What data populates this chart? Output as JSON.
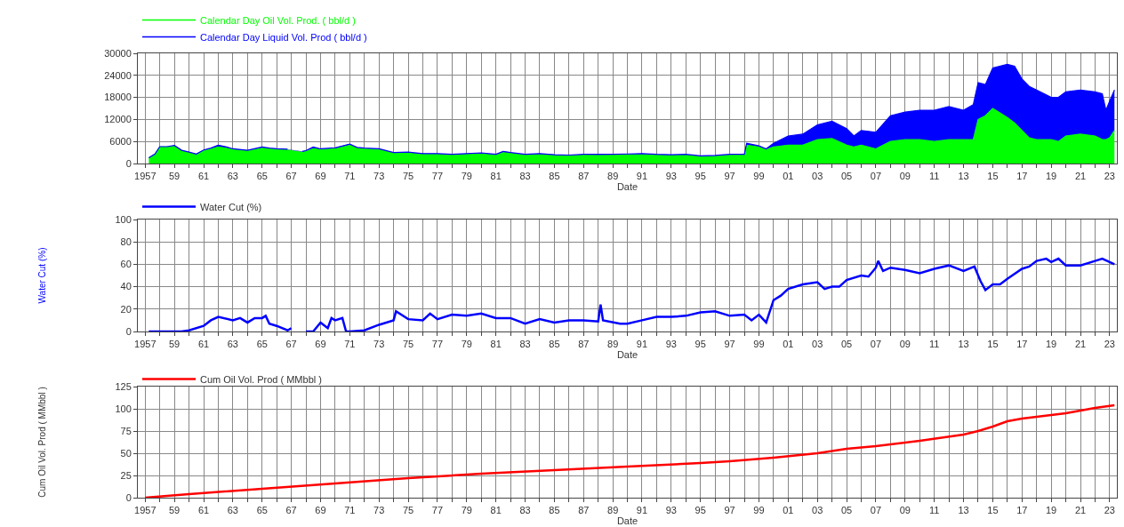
{
  "chart_data": [
    {
      "type": "area",
      "xlabel": "Date",
      "xlim": [
        "1956-07",
        "2023-07"
      ],
      "ylim": [
        0,
        30000
      ],
      "yticks": [
        0,
        6000,
        12000,
        18000,
        24000,
        30000
      ],
      "grid": true,
      "legend": "top left",
      "marker": "none",
      "xticks": [
        {
          "value": "1957",
          "label": "1957"
        },
        {
          "value": "1958",
          "label": null
        },
        {
          "value": "1959",
          "label": "59"
        },
        {
          "value": "1960",
          "label": null
        },
        {
          "value": "1961",
          "label": "61"
        },
        {
          "value": "1962",
          "label": null
        },
        {
          "value": "1963",
          "label": "63"
        },
        {
          "value": "1964",
          "label": null
        },
        {
          "value": "1965",
          "label": "65"
        },
        {
          "value": "1966",
          "label": null
        },
        {
          "value": "1967",
          "label": "67"
        },
        {
          "value": "1968",
          "label": null
        },
        {
          "value": "1969",
          "label": "69"
        },
        {
          "value": "1970",
          "label": null
        },
        {
          "value": "1971",
          "label": "71"
        },
        {
          "value": "1972",
          "label": null
        },
        {
          "value": "1973",
          "label": "73"
        },
        {
          "value": "1974",
          "label": null
        },
        {
          "value": "1975",
          "label": "75"
        },
        {
          "value": "1976",
          "label": null
        },
        {
          "value": "1977",
          "label": "77"
        },
        {
          "value": "1978",
          "label": null
        },
        {
          "value": "1979",
          "label": "79"
        },
        {
          "value": "1980",
          "label": null
        },
        {
          "value": "1981",
          "label": "81"
        },
        {
          "value": "1982",
          "label": null
        },
        {
          "value": "1983",
          "label": "83"
        },
        {
          "value": "1984",
          "label": null
        },
        {
          "value": "1985",
          "label": "85"
        },
        {
          "value": "1986",
          "label": null
        },
        {
          "value": "1987",
          "label": "87"
        },
        {
          "value": "1988",
          "label": null
        },
        {
          "value": "1989",
          "label": "89"
        },
        {
          "value": "1990",
          "label": null
        },
        {
          "value": "1991",
          "label": "91"
        },
        {
          "value": "1992",
          "label": null
        },
        {
          "value": "1993",
          "label": "93"
        },
        {
          "value": "1994",
          "label": null
        },
        {
          "value": "1995",
          "label": "95"
        },
        {
          "value": "1996",
          "label": null
        },
        {
          "value": "1997",
          "label": "97"
        },
        {
          "value": "1998",
          "label": null
        },
        {
          "value": "1999",
          "label": "99"
        },
        {
          "value": "2000",
          "label": null
        },
        {
          "value": "2001",
          "label": "01"
        },
        {
          "value": "2002",
          "label": null
        },
        {
          "value": "2003",
          "label": "03"
        },
        {
          "value": "2004",
          "label": null
        },
        {
          "value": "2005",
          "label": "05"
        },
        {
          "value": "2006",
          "label": null
        },
        {
          "value": "2007",
          "label": "07"
        },
        {
          "value": "2008",
          "label": null
        },
        {
          "value": "2009",
          "label": "09"
        },
        {
          "value": "2010",
          "label": null
        },
        {
          "value": "2011",
          "label": "11"
        },
        {
          "value": "2012",
          "label": null
        },
        {
          "value": "2013",
          "label": "13"
        },
        {
          "value": "2014",
          "label": null
        },
        {
          "value": "2015",
          "label": "15"
        },
        {
          "value": "2016",
          "label": null
        },
        {
          "value": "2017",
          "label": "17"
        },
        {
          "value": "2018",
          "label": null
        },
        {
          "value": "2019",
          "label": "19"
        },
        {
          "value": "2020",
          "label": null
        },
        {
          "value": "2021",
          "label": "21"
        },
        {
          "value": "2022",
          "label": null
        },
        {
          "value": "2023",
          "label": "23"
        }
      ],
      "x": [
        "1957-04",
        "1957-09",
        "1958-01",
        "1958-07",
        "1959-01",
        "1959-07",
        "1960-01",
        "1960-07",
        "1961-01",
        "1961-07",
        "1962-01",
        "1962-07",
        "1963-01",
        "1964-01",
        "1965-01",
        "1965-07",
        "1966-01",
        "1966-10",
        "1967-06",
        "1967-10",
        "1968-01",
        "1968-07",
        "1969-01",
        "1970-01",
        "1971-01",
        "1971-07",
        "1972-01",
        "1973-01",
        "1974-01",
        "1975-01",
        "1976-01",
        "1977-01",
        "1978-01",
        "1979-01",
        "1980-01",
        "1981-01",
        "1981-07",
        "1982-01",
        "1983-01",
        "1984-01",
        "1985-01",
        "1986-01",
        "1987-01",
        "1988-01",
        "1989-01",
        "1990-01",
        "1991-01",
        "1992-01",
        "1993-01",
        "1994-01",
        "1995-01",
        "1996-01",
        "1997-01",
        "1998-01",
        "1998-03",
        "1999-01",
        "1999-07",
        "2000-01",
        "2001-01",
        "2002-01",
        "2003-01",
        "2004-01",
        "2005-01",
        "2005-07",
        "2006-01",
        "2007-01",
        "2008-01",
        "2009-01",
        "2010-01",
        "2011-01",
        "2012-01",
        "2013-01",
        "2013-09",
        "2014-01",
        "2014-07",
        "2015-01",
        "2016-01",
        "2016-07",
        "2017-01",
        "2017-07",
        "2018-01",
        "2019-01",
        "2019-07",
        "2020-01",
        "2021-01",
        "2022-01",
        "2022-07",
        "2022-10",
        "2023-01",
        "2023-05"
      ],
      "series": [
        {
          "name": "Calendar Day Oil Vol. Prod. ( bbl/d )",
          "color": "#00ff00",
          "values": [
            1500,
            2500,
            4500,
            4500,
            4800,
            3500,
            3000,
            2500,
            3500,
            4000,
            4500,
            4200,
            3800,
            3400,
            4200,
            4000,
            3900,
            3800,
            null,
            3200,
            3400,
            4000,
            3800,
            4000,
            5000,
            4200,
            4000,
            3800,
            2800,
            2800,
            2500,
            2500,
            2300,
            2500,
            2600,
            2300,
            3000,
            2800,
            2300,
            2500,
            2200,
            2100,
            2300,
            2200,
            2300,
            2400,
            2500,
            2300,
            2200,
            2300,
            1900,
            2000,
            2300,
            2300,
            5000,
            4500,
            3800,
            4500,
            5000,
            5000,
            6500,
            6800,
            5000,
            4500,
            5000,
            4000,
            6000,
            6500,
            6500,
            6000,
            6500,
            6500,
            6500,
            12000,
            13000,
            15000,
            12500,
            11000,
            9000,
            7000,
            6500,
            6500,
            6000,
            7500,
            8000,
            7500,
            6500,
            6500,
            7000,
            9000
          ]
        },
        {
          "name": "Calendar Day Liquid Vol. Prod ( bbl/d )",
          "color": "#0000ff",
          "values": [
            1600,
            2600,
            4600,
            4600,
            4900,
            3600,
            3100,
            2600,
            3700,
            4200,
            5000,
            4600,
            4000,
            3600,
            4500,
            4200,
            4000,
            3900,
            null,
            3300,
            3500,
            4500,
            4000,
            4300,
            5300,
            4400,
            4200,
            4000,
            3000,
            3100,
            2700,
            2700,
            2500,
            2700,
            2900,
            2500,
            3300,
            3000,
            2500,
            2700,
            2400,
            2300,
            2500,
            2500,
            2500,
            2600,
            2700,
            2500,
            2400,
            2500,
            2100,
            2200,
            2500,
            2500,
            5500,
            4800,
            4000,
            5500,
            7500,
            8000,
            10500,
            11500,
            9500,
            7500,
            9000,
            8500,
            13000,
            14000,
            14500,
            14500,
            15500,
            14500,
            16000,
            22000,
            21500,
            26000,
            27000,
            26500,
            23000,
            21000,
            20000,
            18000,
            18000,
            19500,
            20000,
            19500,
            19000,
            14500,
            17000,
            20000
          ]
        }
      ]
    },
    {
      "type": "line",
      "xlabel": "Date",
      "ylabel": "Water Cut (%)",
      "xlim": [
        "1956-07",
        "2023-07"
      ],
      "ylim": [
        0,
        100
      ],
      "yticks": [
        0,
        20,
        40,
        60,
        80,
        100
      ],
      "grid": true,
      "legend": "top left",
      "marker": "none",
      "xticks": [
        {
          "value": "1957",
          "label": "1957"
        },
        {
          "value": "1958",
          "label": null
        },
        {
          "value": "1959",
          "label": "59"
        },
        {
          "value": "1960",
          "label": null
        },
        {
          "value": "1961",
          "label": "61"
        },
        {
          "value": "1962",
          "label": null
        },
        {
          "value": "1963",
          "label": "63"
        },
        {
          "value": "1964",
          "label": null
        },
        {
          "value": "1965",
          "label": "65"
        },
        {
          "value": "1966",
          "label": null
        },
        {
          "value": "1967",
          "label": "67"
        },
        {
          "value": "1968",
          "label": null
        },
        {
          "value": "1969",
          "label": "69"
        },
        {
          "value": "1970",
          "label": null
        },
        {
          "value": "1971",
          "label": "71"
        },
        {
          "value": "1972",
          "label": null
        },
        {
          "value": "1973",
          "label": "73"
        },
        {
          "value": "1974",
          "label": null
        },
        {
          "value": "1975",
          "label": "75"
        },
        {
          "value": "1976",
          "label": null
        },
        {
          "value": "1977",
          "label": "77"
        },
        {
          "value": "1978",
          "label": null
        },
        {
          "value": "1979",
          "label": "79"
        },
        {
          "value": "1980",
          "label": null
        },
        {
          "value": "1981",
          "label": "81"
        },
        {
          "value": "1982",
          "label": null
        },
        {
          "value": "1983",
          "label": "83"
        },
        {
          "value": "1984",
          "label": null
        },
        {
          "value": "1985",
          "label": "85"
        },
        {
          "value": "1986",
          "label": null
        },
        {
          "value": "1987",
          "label": "87"
        },
        {
          "value": "1988",
          "label": null
        },
        {
          "value": "1989",
          "label": "89"
        },
        {
          "value": "1990",
          "label": null
        },
        {
          "value": "1991",
          "label": "91"
        },
        {
          "value": "1992",
          "label": null
        },
        {
          "value": "1993",
          "label": "93"
        },
        {
          "value": "1994",
          "label": null
        },
        {
          "value": "1995",
          "label": "95"
        },
        {
          "value": "1996",
          "label": null
        },
        {
          "value": "1997",
          "label": "97"
        },
        {
          "value": "1998",
          "label": null
        },
        {
          "value": "1999",
          "label": "99"
        },
        {
          "value": "2000",
          "label": null
        },
        {
          "value": "2001",
          "label": "01"
        },
        {
          "value": "2002",
          "label": null
        },
        {
          "value": "2003",
          "label": "03"
        },
        {
          "value": "2004",
          "label": null
        },
        {
          "value": "2005",
          "label": "05"
        },
        {
          "value": "2006",
          "label": null
        },
        {
          "value": "2007",
          "label": "07"
        },
        {
          "value": "2008",
          "label": null
        },
        {
          "value": "2009",
          "label": "09"
        },
        {
          "value": "2010",
          "label": null
        },
        {
          "value": "2011",
          "label": "11"
        },
        {
          "value": "2012",
          "label": null
        },
        {
          "value": "2013",
          "label": "13"
        },
        {
          "value": "2014",
          "label": null
        },
        {
          "value": "2015",
          "label": "15"
        },
        {
          "value": "2016",
          "label": null
        },
        {
          "value": "2017",
          "label": "17"
        },
        {
          "value": "2018",
          "label": null
        },
        {
          "value": "2019",
          "label": "19"
        },
        {
          "value": "2020",
          "label": null
        },
        {
          "value": "2021",
          "label": "21"
        },
        {
          "value": "2022",
          "label": null
        },
        {
          "value": "2023",
          "label": "23"
        }
      ],
      "x": [
        "1957-04",
        "1958-01",
        "1959-07",
        "1960-01",
        "1961-01",
        "1961-07",
        "1962-01",
        "1963-01",
        "1963-07",
        "1964-01",
        "1964-07",
        "1965-01",
        "1965-04",
        "1965-07",
        "1966-01",
        "1966-10",
        "1967-01",
        "1967-06",
        "1968-01",
        "1968-07",
        "1969-01",
        "1969-07",
        "1969-10",
        "1970-01",
        "1970-07",
        "1970-10",
        "1971-01",
        "1972-01",
        "1973-01",
        "1974-01",
        "1974-03",
        "1975-01",
        "1976-01",
        "1976-07",
        "1977-01",
        "1978-01",
        "1979-01",
        "1980-01",
        "1981-01",
        "1982-01",
        "1983-01",
        "1984-01",
        "1985-01",
        "1986-01",
        "1987-01",
        "1988-01",
        "1988-03",
        "1988-05",
        "1989-07",
        "1990-01",
        "1991-01",
        "1992-01",
        "1993-01",
        "1994-01",
        "1995-01",
        "1996-01",
        "1997-01",
        "1998-01",
        "1998-07",
        "1999-01",
        "1999-07",
        "2000-01",
        "2000-07",
        "2001-01",
        "2002-01",
        "2003-01",
        "2003-07",
        "2004-01",
        "2004-07",
        "2005-01",
        "2006-01",
        "2006-07",
        "2007-01",
        "2007-03",
        "2007-07",
        "2008-01",
        "2009-01",
        "2010-01",
        "2011-01",
        "2012-01",
        "2013-01",
        "2013-10",
        "2014-03",
        "2014-07",
        "2015-01",
        "2015-07",
        "2016-01",
        "2017-01",
        "2017-07",
        "2018-01",
        "2018-09",
        "2019-01",
        "2019-07",
        "2020-01",
        "2021-01",
        "2022-01",
        "2022-07",
        "2023-01",
        "2023-05"
      ],
      "series": [
        {
          "name": "Water Cut (%)",
          "color": "#0000ff",
          "values": [
            0,
            0,
            0,
            1,
            5,
            10,
            13,
            10,
            12,
            8,
            12,
            12,
            14,
            7,
            5,
            1,
            3,
            null,
            0,
            0,
            8,
            3,
            12,
            10,
            12,
            0,
            0,
            1,
            6,
            10,
            18,
            11,
            10,
            16,
            11,
            15,
            14,
            16,
            12,
            12,
            7,
            11,
            8,
            10,
            10,
            9,
            24,
            10,
            7,
            7,
            10,
            13,
            13,
            14,
            17,
            18,
            14,
            15,
            10,
            15,
            8,
            28,
            32,
            38,
            42,
            44,
            38,
            40,
            40,
            46,
            50,
            49,
            57,
            63,
            54,
            57,
            55,
            52,
            56,
            59,
            54,
            58,
            45,
            37,
            42,
            42,
            47,
            56,
            58,
            63,
            65,
            62,
            65,
            59,
            59,
            63,
            65,
            62,
            60
          ]
        }
      ]
    },
    {
      "type": "line",
      "xlabel": "Date",
      "ylabel": "Cum Oil Vol. Prod ( MMbbl )",
      "xlim": [
        "1956-07",
        "2023-07"
      ],
      "ylim": [
        0,
        125
      ],
      "yticks": [
        0,
        25,
        50,
        75,
        100,
        125
      ],
      "grid": true,
      "legend": "top left",
      "marker": "none",
      "xticks": [
        {
          "value": "1957",
          "label": "1957"
        },
        {
          "value": "1958",
          "label": null
        },
        {
          "value": "1959",
          "label": "59"
        },
        {
          "value": "1960",
          "label": null
        },
        {
          "value": "1961",
          "label": "61"
        },
        {
          "value": "1962",
          "label": null
        },
        {
          "value": "1963",
          "label": "63"
        },
        {
          "value": "1964",
          "label": null
        },
        {
          "value": "1965",
          "label": "65"
        },
        {
          "value": "1966",
          "label": null
        },
        {
          "value": "1967",
          "label": "67"
        },
        {
          "value": "1968",
          "label": null
        },
        {
          "value": "1969",
          "label": "69"
        },
        {
          "value": "1970",
          "label": null
        },
        {
          "value": "1971",
          "label": "71"
        },
        {
          "value": "1972",
          "label": null
        },
        {
          "value": "1973",
          "label": "73"
        },
        {
          "value": "1974",
          "label": null
        },
        {
          "value": "1975",
          "label": "75"
        },
        {
          "value": "1976",
          "label": null
        },
        {
          "value": "1977",
          "label": "77"
        },
        {
          "value": "1978",
          "label": null
        },
        {
          "value": "1979",
          "label": "79"
        },
        {
          "value": "1980",
          "label": null
        },
        {
          "value": "1981",
          "label": "81"
        },
        {
          "value": "1982",
          "label": null
        },
        {
          "value": "1983",
          "label": "83"
        },
        {
          "value": "1984",
          "label": null
        },
        {
          "value": "1985",
          "label": "85"
        },
        {
          "value": "1986",
          "label": null
        },
        {
          "value": "1987",
          "label": "87"
        },
        {
          "value": "1988",
          "label": null
        },
        {
          "value": "1989",
          "label": "89"
        },
        {
          "value": "1990",
          "label": null
        },
        {
          "value": "1991",
          "label": "91"
        },
        {
          "value": "1992",
          "label": null
        },
        {
          "value": "1993",
          "label": "93"
        },
        {
          "value": "1994",
          "label": null
        },
        {
          "value": "1995",
          "label": "95"
        },
        {
          "value": "1996",
          "label": null
        },
        {
          "value": "1997",
          "label": "97"
        },
        {
          "value": "1998",
          "label": null
        },
        {
          "value": "1999",
          "label": "99"
        },
        {
          "value": "2000",
          "label": null
        },
        {
          "value": "2001",
          "label": "01"
        },
        {
          "value": "2002",
          "label": null
        },
        {
          "value": "2003",
          "label": "03"
        },
        {
          "value": "2004",
          "label": null
        },
        {
          "value": "2005",
          "label": "05"
        },
        {
          "value": "2006",
          "label": null
        },
        {
          "value": "2007",
          "label": "07"
        },
        {
          "value": "2008",
          "label": null
        },
        {
          "value": "2009",
          "label": "09"
        },
        {
          "value": "2010",
          "label": null
        },
        {
          "value": "2011",
          "label": "11"
        },
        {
          "value": "2012",
          "label": null
        },
        {
          "value": "2013",
          "label": "13"
        },
        {
          "value": "2014",
          "label": null
        },
        {
          "value": "2015",
          "label": "15"
        },
        {
          "value": "2016",
          "label": null
        },
        {
          "value": "2017",
          "label": "17"
        },
        {
          "value": "2018",
          "label": null
        },
        {
          "value": "2019",
          "label": "19"
        },
        {
          "value": "2020",
          "label": null
        },
        {
          "value": "2021",
          "label": "21"
        },
        {
          "value": "2022",
          "label": null
        },
        {
          "value": "2023",
          "label": "23"
        }
      ],
      "x": [
        "1957-01",
        "1960-01",
        "1965-01",
        "1970-01",
        "1975-01",
        "1980-01",
        "1985-01",
        "1990-01",
        "1995-01",
        "1997-01",
        "2000-01",
        "2003-01",
        "2005-01",
        "2007-01",
        "2010-01",
        "2013-01",
        "2014-01",
        "2015-01",
        "2016-01",
        "2017-01",
        "2018-01",
        "2020-01",
        "2021-01",
        "2022-01",
        "2023-05"
      ],
      "series": [
        {
          "name": "Cum Oil Vol. Prod ( MMbbl )",
          "color": "#ff0000",
          "values": [
            0,
            4,
            10,
            16,
            22,
            27,
            31,
            35,
            39,
            41,
            45,
            50,
            55,
            58,
            64,
            71,
            75,
            80,
            86,
            89,
            91,
            95,
            98,
            101,
            104
          ]
        }
      ]
    }
  ]
}
